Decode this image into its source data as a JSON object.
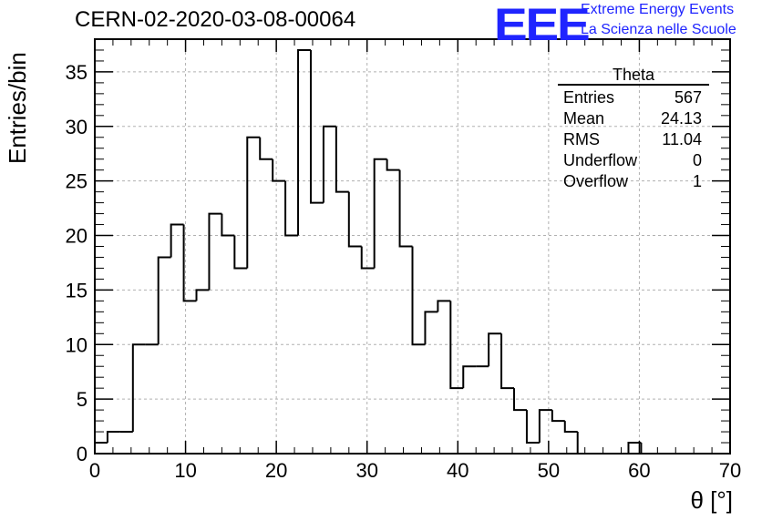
{
  "header": {
    "title": "CERN-02-2020-03-08-00064",
    "logo_text": "EEE",
    "logo_line1": "Extreme Energy Events",
    "logo_line2": "La Scienza nelle Scuole"
  },
  "stats_box": {
    "title": "Theta",
    "rows": [
      {
        "label": "Entries",
        "value": "567"
      },
      {
        "label": "Mean",
        "value": "24.13"
      },
      {
        "label": "RMS",
        "value": "11.04"
      },
      {
        "label": "Underflow",
        "value": "0"
      },
      {
        "label": "Overflow",
        "value": "1"
      }
    ]
  },
  "colors": {
    "line": "#000000",
    "grid": "#b0b0b0",
    "logo": "#1f24ff"
  },
  "chart_data": {
    "type": "bar",
    "style": "step-histogram",
    "title": "CERN-02-2020-03-08-00064",
    "xlabel": "θ [°]",
    "ylabel": "Entries/bin",
    "xlim": [
      0,
      70
    ],
    "ylim": [
      0,
      38
    ],
    "xticks": [
      0,
      10,
      20,
      30,
      40,
      50,
      60,
      70
    ],
    "yticks": [
      0,
      5,
      10,
      15,
      20,
      25,
      30,
      35
    ],
    "grid": true,
    "bin_width": 1.4,
    "bin_edges_start": 0,
    "values": [
      1,
      2,
      2,
      10,
      10,
      18,
      21,
      14,
      15,
      22,
      20,
      17,
      29,
      27,
      25,
      20,
      37,
      23,
      30,
      24,
      19,
      17,
      27,
      26,
      19,
      10,
      13,
      14,
      6,
      8,
      8,
      11,
      6,
      4,
      1,
      4,
      3,
      2,
      0,
      0,
      0,
      0,
      1,
      0,
      0,
      0,
      0,
      0,
      0,
      0
    ]
  }
}
